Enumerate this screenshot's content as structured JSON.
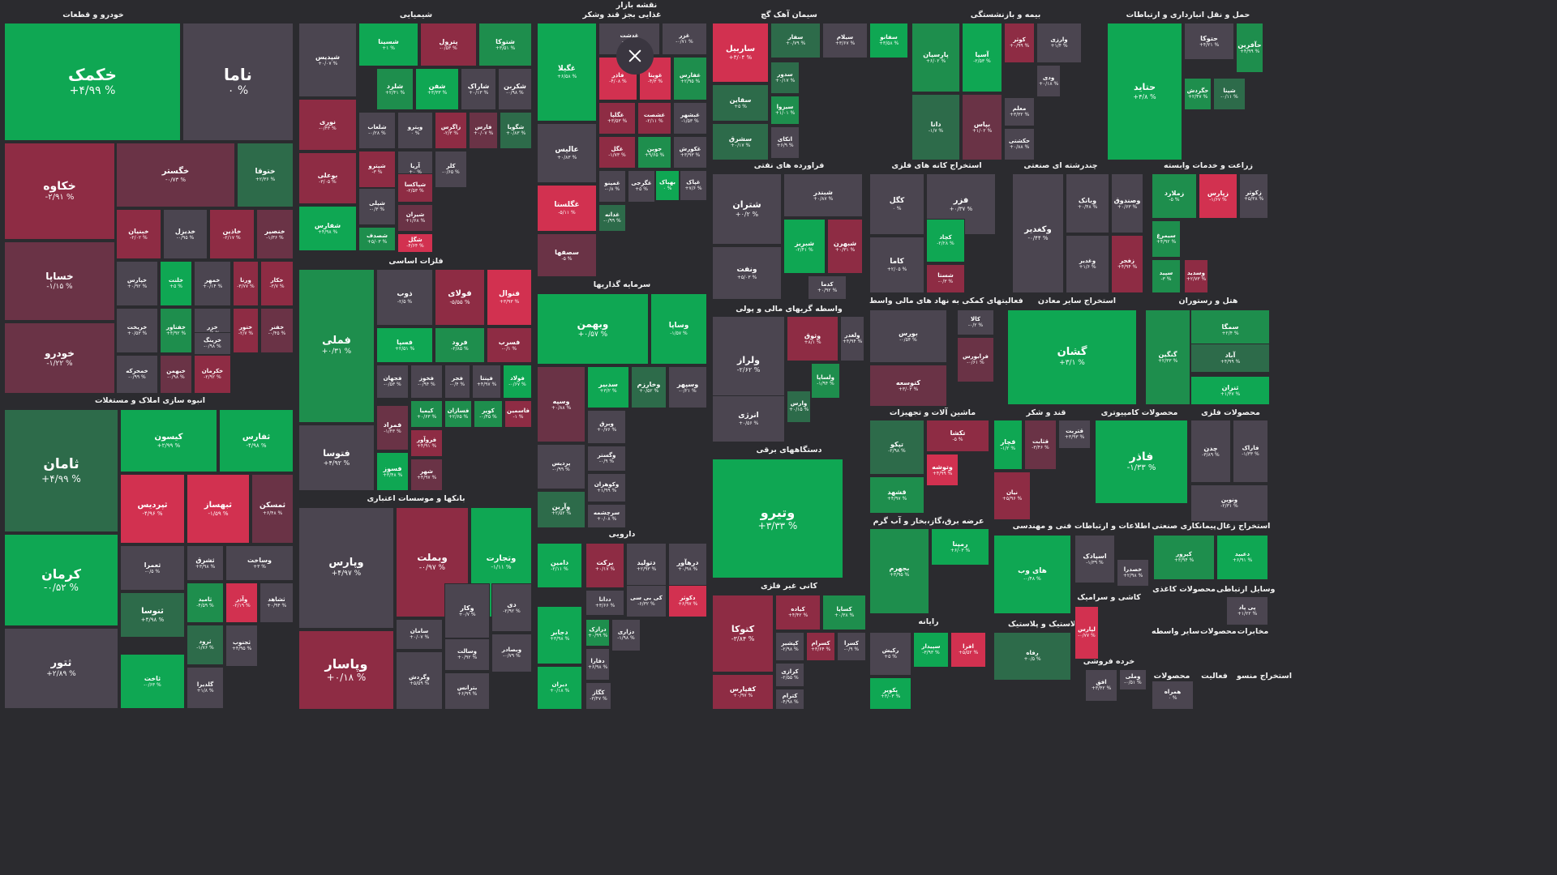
{
  "map_title": "نقشه بازار",
  "close_icon": "close-icon",
  "colors": {
    "strong_green": "#0fa753",
    "green": "#1e8e4d",
    "dark_green": "#2d6b4a",
    "neutral": "#4b4550",
    "dark_red": "#6a3346",
    "red": "#8e2c44",
    "strong_red": "#d23150"
  },
  "sections": [
    {
      "title": "خودرو و قطعات"
    },
    {
      "title": "شیمیایی"
    },
    {
      "title": "غذایی بجز قند وشکر"
    },
    {
      "title": "سیمان آهک گچ"
    },
    {
      "title": "بیمه و بازنشستگی"
    },
    {
      "title": "حمل و نقل انبارداری و ارتباطات"
    },
    {
      "title": "فراورده های نفتی"
    },
    {
      "title": "استخراج کانه های فلزی"
    },
    {
      "title": "چندرشته ای صنعتی"
    },
    {
      "title": "زراعت و خدمات وابسته"
    },
    {
      "title": "فلزات اساسی"
    },
    {
      "title": "سرمایه گذاریها"
    },
    {
      "title": "واسطه گریهای مالی و پولی"
    },
    {
      "title": "فعالیتهای کمکی به نهاد های مالی واسط"
    },
    {
      "title": "استخراج سایر معادن"
    },
    {
      "title": "هتل و رستوران"
    },
    {
      "title": "انبوه سازی املاک و مستغلات"
    },
    {
      "title": "ماشین آلات و تجهیزات"
    },
    {
      "title": "قند و شکر"
    },
    {
      "title": "محصولات کامپیوتری"
    },
    {
      "title": "محصولات فلزی"
    },
    {
      "title": "بانکها و موسسات اعتباری"
    },
    {
      "title": "دستگاههای برقی"
    },
    {
      "title": "عرضه برق،گاز،بخار و آب گرم"
    },
    {
      "title": "فنی و مهندسی"
    },
    {
      "title": "اطلاعات و ارتباطات"
    },
    {
      "title": "پیمانکاری صنعتی"
    },
    {
      "title": "استخراج زغال"
    },
    {
      "title": "دارویی"
    },
    {
      "title": "کانی غیر فلزی"
    },
    {
      "title": "کاشی و سرامیک"
    },
    {
      "title": "محصولات کاغذی"
    },
    {
      "title": "وسایل ارتباطی"
    },
    {
      "title": "رایانه"
    },
    {
      "title": "لاستیک و پلاستیک"
    },
    {
      "title": "سایر واسطه"
    },
    {
      "title": "محصولات"
    },
    {
      "title": "مخابرات"
    },
    {
      "title": "خرده فروشی"
    },
    {
      "title": "محصولات"
    },
    {
      "title": "فعالیت"
    },
    {
      "title": "استخراج منسو"
    }
  ],
  "tiles": [
    {
      "sym": "خکمک",
      "chg": "+۴/۹۹ %"
    },
    {
      "sym": "ناما",
      "chg": "۰ %"
    },
    {
      "sym": "خکاوه",
      "chg": "-۲/۹۱ %"
    },
    {
      "sym": "خگستر",
      "chg": "-۰/۷۳ %"
    },
    {
      "sym": "ختوقا",
      "chg": "+۲/۳۶ %"
    },
    {
      "sym": "خساپا",
      "chg": "-۱/۱۵ %"
    },
    {
      "sym": "خودرو",
      "chg": "-۱/۲۲ %"
    },
    {
      "sym": "ختراکتور",
      "chg": "-۰/۴۶ %"
    },
    {
      "sym": "خبنیان",
      "chg": "-۲/۰۲ %"
    },
    {
      "sym": "خدیزل",
      "chg": "-۰/۹۵ %"
    },
    {
      "sym": "خاذین",
      "chg": "-۲/۱۷ %"
    },
    {
      "sym": "خنصیر",
      "chg": "-۱/۳۶ %"
    },
    {
      "sym": "خپارس",
      "chg": "+۰/۹۲ %"
    },
    {
      "sym": "خلنت",
      "chg": "+۵ %"
    },
    {
      "sym": "خمهر",
      "chg": "+۰/۱۴ %"
    },
    {
      "sym": "ورنا",
      "chg": "-۳/۷۷ %"
    },
    {
      "sym": "خکار",
      "chg": "-۳/۷ %"
    },
    {
      "sym": "خریخت",
      "chg": "+۰/۵۳ %"
    },
    {
      "sym": "خفناور",
      "chg": "+۴/۹۲ %"
    },
    {
      "sym": "خزر",
      "chg": "-۰/۹ %"
    },
    {
      "sym": "ختور",
      "chg": "-۲/۷ %"
    },
    {
      "sym": "خفنر",
      "chg": "-۰/۴۵ %"
    },
    {
      "sym": "خرینگ",
      "chg": "-۰/۹۸ %"
    },
    {
      "sym": "خمحرکه",
      "chg": "-۰/۹۹ %"
    },
    {
      "sym": "خبهمن",
      "chg": "-۰/۹۸ %"
    },
    {
      "sym": "خکرمان",
      "chg": "-۲/۹۲ %"
    },
    {
      "sym": "شسینا",
      "chg": "+۱ %"
    },
    {
      "sym": "پترول",
      "chg": "-۰/۵۳ %"
    },
    {
      "sym": "شتوکا",
      "chg": "+۳/۵۱ %"
    },
    {
      "sym": "شپدیس",
      "chg": "+۰/۰۷ %"
    },
    {
      "sym": "شلرد",
      "chg": "+۲/۴۱ %"
    },
    {
      "sym": "شفن",
      "chg": "+۳/۳۳ %"
    },
    {
      "sym": "شاراک",
      "chg": "+۰/۱۳ %"
    },
    {
      "sym": "شکربن",
      "chg": "-۰/۹۸ %"
    },
    {
      "sym": "نوری",
      "chg": "-۰/۴۳ %"
    },
    {
      "sym": "شلعاب",
      "chg": "-۰/۲۸ %"
    },
    {
      "sym": "ویترو",
      "chg": "۰ %"
    },
    {
      "sym": "زاگرس",
      "chg": "-۲/۳ %"
    },
    {
      "sym": "فارس",
      "chg": "+۰/۰۷ %"
    },
    {
      "sym": "شگویا",
      "chg": "+۰/۸۳ %"
    },
    {
      "sym": "بوعلی",
      "chg": "-۳/۰۵ %"
    },
    {
      "sym": "شپترو",
      "chg": "-۳ %"
    },
    {
      "sym": "آریا",
      "chg": "+۰ %"
    },
    {
      "sym": "کلر",
      "chg": "-۰/۶۵ %"
    },
    {
      "sym": "شفارس",
      "chg": "+۴/۹۸ %"
    },
    {
      "sym": "شپلی",
      "chg": "-۰/۳ %"
    },
    {
      "sym": "شپاکسا",
      "chg": "-۲/۵۳ %"
    },
    {
      "sym": "شیران",
      "chg": "+۱/۶۸ %"
    },
    {
      "sym": "شصدف",
      "chg": "+۵/۰۳ %"
    },
    {
      "sym": "شگل",
      "chg": "-۴/۶۴ %"
    },
    {
      "sym": "غگیلا",
      "chg": "+۶/۵۸ %"
    },
    {
      "sym": "غدشت",
      "chg": "-۰/۹ %"
    },
    {
      "sym": "غزر",
      "chg": "-۰/۷۱ %"
    },
    {
      "sym": "فاذر",
      "chg": "-۴/۰۸ %"
    },
    {
      "sym": "غویتا",
      "chg": "-۴/۳ %"
    },
    {
      "sym": "غفارس",
      "chg": "+۲/۹۵ %"
    },
    {
      "sym": "عالیس",
      "chg": "+۰/۸۳ %"
    },
    {
      "sym": "غگلپا",
      "chg": "+۳/۵۳ %"
    },
    {
      "sym": "غشصت",
      "chg": "-۲/۱۱ %"
    },
    {
      "sym": "غبشهر",
      "chg": "-۱/۵۳ %"
    },
    {
      "sym": "غگل",
      "chg": "-۱/۷۳ %"
    },
    {
      "sym": "جوین",
      "chg": "+۹/۶۵ %"
    },
    {
      "sym": "غکورش",
      "chg": "+۳/۹۳ %"
    },
    {
      "sym": "غگلستا",
      "chg": "-۵/۱۱ %"
    },
    {
      "sym": "غمینو",
      "chg": "-۰/۸ %"
    },
    {
      "sym": "غگرجی",
      "chg": "+۵ %"
    },
    {
      "sym": "بهپاک",
      "chg": "۰ %"
    },
    {
      "sym": "غپاک",
      "chg": "+۷/۶ %"
    },
    {
      "sym": "غدانه",
      "chg": "-۰/۹۹ %"
    },
    {
      "sym": "سصفها",
      "chg": "-۵ %"
    },
    {
      "sym": "ساربیل",
      "chg": "+۳/۰۴ %"
    },
    {
      "sym": "سفار",
      "chg": "+۰/۷۹ %"
    },
    {
      "sym": "سیلام",
      "chg": "+۳/۶۷ %"
    },
    {
      "sym": "سفانو",
      "chg": "+۳/۵۸ %"
    },
    {
      "sym": "سدور",
      "chg": "+۰/۱۷ %"
    },
    {
      "sym": "سقاین",
      "chg": "+۵ %"
    },
    {
      "sym": "سیزوا",
      "chg": "+۱/۰۱ %"
    },
    {
      "sym": "سشرق",
      "chg": "+۰/۱۷ %"
    },
    {
      "sym": "اتکای",
      "chg": "+۶/۹ %"
    },
    {
      "sym": "پارسیان",
      "chg": "+۶/۰۲ %"
    },
    {
      "sym": "آسیا",
      "chg": "-۲/۵۳ %"
    },
    {
      "sym": "کوثر",
      "chg": "+۰/۹۹ %"
    },
    {
      "sym": "وارزی",
      "chg": "+۱/۴ %"
    },
    {
      "sym": "ودی",
      "chg": "+۰/۱۸ %"
    },
    {
      "sym": "معلم",
      "chg": "+۳/۳۲ %"
    },
    {
      "sym": "دانا",
      "chg": "-۱/۷ %"
    },
    {
      "sym": "بپاس",
      "chg": "+۱/۰۲ %"
    },
    {
      "sym": "حکشتی",
      "chg": "+۰/۸۸ %"
    },
    {
      "sym": "حتوکا",
      "chg": "+۴/۲۱ %"
    },
    {
      "sym": "حآفرین",
      "chg": "+۴/۹۹ %"
    },
    {
      "sym": "حتاید",
      "chg": "+۴/۸ %"
    },
    {
      "sym": "حگردش",
      "chg": "+۲/۴۷ %"
    },
    {
      "sym": "شپنا",
      "chg": "-۰/۱۱ %"
    },
    {
      "sym": "شتران",
      "chg": "+۰/۲ %"
    },
    {
      "sym": "شبندر",
      "chg": "+۰/۸۷ %"
    },
    {
      "sym": "ونفت",
      "chg": "+۵/۰۳ %"
    },
    {
      "sym": "شبریز",
      "chg": "-۲/۴۱ %"
    },
    {
      "sym": "شبهرن",
      "chg": "+۰/۳۱ %"
    },
    {
      "sym": "کدما",
      "chg": "+۰/۹۲ %"
    },
    {
      "sym": "کگل",
      "chg": "۰ %"
    },
    {
      "sym": "فزر",
      "chg": "+۰/۳۷ %"
    },
    {
      "sym": "کاما",
      "chg": "+۲/۰۵ %"
    },
    {
      "sym": "کچاد",
      "chg": "-۲/۲۸ %"
    },
    {
      "sym": "شستا",
      "chg": "-۰/۳ %"
    },
    {
      "sym": "وکغدیر",
      "chg": "-۰/۴۴ %"
    },
    {
      "sym": "وبانک",
      "chg": "+۰/۴۸ %"
    },
    {
      "sym": "وصندوق",
      "chg": "+۰/۶۳ %"
    },
    {
      "sym": "وغدیر",
      "chg": "+۱/۶ %"
    },
    {
      "sym": "زفجر",
      "chg": "+۴/۹۴ %"
    },
    {
      "sym": "زملارد",
      "chg": "-۵ %"
    },
    {
      "sym": "زپارس",
      "chg": "-۱/۶۷ %"
    },
    {
      "sym": "زکوثر",
      "chg": "+۵/۳۸ %"
    },
    {
      "sym": "سیمرغ",
      "chg": "+۴/۹۲ %"
    },
    {
      "sym": "سپید",
      "chg": "-۳ %"
    },
    {
      "sym": "وسدید",
      "chg": "+۲/۷۳ %"
    },
    {
      "sym": "فملی",
      "chg": "+۰/۳۱ %"
    },
    {
      "sym": "ذوب",
      "chg": "-۲/۵ %"
    },
    {
      "sym": "فولای",
      "chg": "-۵/۵۵ %"
    },
    {
      "sym": "فنوال",
      "chg": "+۳/۹۳ %"
    },
    {
      "sym": "فسپا",
      "chg": "+۲/۵۱ %"
    },
    {
      "sym": "فرود",
      "chg": "-۲/۸۵ %"
    },
    {
      "sym": "فسرب",
      "chg": "-۰/۱ %"
    },
    {
      "sym": "فجهان",
      "chg": "-۰/۵۳ %"
    },
    {
      "sym": "فخوز",
      "chg": "-۰/۹۴ %"
    },
    {
      "sym": "فجر",
      "chg": "-۰/۴ %"
    },
    {
      "sym": "فپنتا",
      "chg": "+۴/۹۷ %"
    },
    {
      "sym": "فولاد",
      "chg": "-۰/۶۷ %"
    },
    {
      "sym": "فتوسا",
      "chg": "+۴/۹۲ %"
    },
    {
      "sym": "کیمیا",
      "chg": "+۰/۶۳ %"
    },
    {
      "sym": "فسازان",
      "chg": "+۲/۶۵ %"
    },
    {
      "sym": "کویر",
      "chg": "-۰/۴۵ %"
    },
    {
      "sym": "فاسمین",
      "chg": "-۱ %"
    },
    {
      "sym": "فمراد",
      "chg": "-۱/۴۳ %"
    },
    {
      "sym": "فروآور",
      "chg": "+۴/۹۱ %"
    },
    {
      "sym": "فسوز",
      "chg": "+۳/۴۸ %"
    },
    {
      "sym": "شهر",
      "chg": "+۴/۹۷ %"
    },
    {
      "sym": "وبهمن",
      "chg": "+۰/۵۷ %"
    },
    {
      "sym": "وساپا",
      "chg": "-۱/۵۷ %"
    },
    {
      "sym": "وسپه",
      "chg": "+۰/۸۸ %"
    },
    {
      "sym": "سدبیر",
      "chg": "+۳/۲ %"
    },
    {
      "sym": "وخارزم",
      "chg": "+۰/۵۲ %"
    },
    {
      "sym": "وسپهر",
      "chg": "-۰/۲۱ %"
    },
    {
      "sym": "وبرق",
      "chg": "+۰/۷۶ %"
    },
    {
      "sym": "پردیس",
      "chg": "-۰/۹۹ %"
    },
    {
      "sym": "وگستر",
      "chg": "-۰/۹ %"
    },
    {
      "sym": "وکوهران",
      "chg": "+۱/۹۹ %"
    },
    {
      "sym": "وآرین",
      "chg": "+۲/۵۲ %"
    },
    {
      "sym": "سرچشمه",
      "chg": "+۰/۰۸ %"
    },
    {
      "sym": "ولراز",
      "chg": "-۲/۶۲ %"
    },
    {
      "sym": "وثوق",
      "chg": "+۸/۱ %"
    },
    {
      "sym": "ولغدر",
      "chg": "+۴/۹۴ %"
    },
    {
      "sym": "ولساپا",
      "chg": "-۱/۹۴ %"
    },
    {
      "sym": "وارس",
      "chg": "+۰/۱۵ %"
    },
    {
      "sym": "انرژی",
      "chg": "+۰/۵۶ %"
    },
    {
      "sym": "کالا",
      "chg": "-۰/۲ %"
    },
    {
      "sym": "بورس",
      "chg": "-۰/۵۴ %"
    },
    {
      "sym": "فرابورس",
      "chg": "-۰/۶۱ %"
    },
    {
      "sym": "کتوسعه",
      "chg": "+۳/۰۳ %"
    },
    {
      "sym": "گشان",
      "chg": "+۳/۱ %"
    },
    {
      "sym": "سمگا",
      "chg": "+۲/۴ %"
    },
    {
      "sym": "گنگین",
      "chg": "+۲/۳۳ %"
    },
    {
      "sym": "آباد",
      "chg": "+۴/۹۹ %"
    },
    {
      "sym": "ثنران",
      "chg": "+۱/۴۷ %"
    },
    {
      "sym": "ثامان",
      "chg": "+۴/۹۹ %"
    },
    {
      "sym": "کیسون",
      "chg": "+۲/۹۹ %"
    },
    {
      "sym": "ثفارس",
      "chg": "-۴/۹۸ %"
    },
    {
      "sym": "ثپردیس",
      "chg": "-۴/۹۶ %"
    },
    {
      "sym": "ثبهساز",
      "chg": "-۱/۵۹ %"
    },
    {
      "sym": "ثمسکن",
      "chg": "+۶/۴۸ %"
    },
    {
      "sym": "کرمان",
      "chg": "-۰/۵۲ %"
    },
    {
      "sym": "ثعمرا",
      "chg": "-۰/۵ %"
    },
    {
      "sym": "ثشرق",
      "chg": "+۳/۹۸ %"
    },
    {
      "sym": "وساخت",
      "chg": "+۳ %"
    },
    {
      "sym": "ثنوسا",
      "chg": "+۴/۹۸ %"
    },
    {
      "sym": "ثامید",
      "chg": "-۴/۵۹ %"
    },
    {
      "sym": "وآذر",
      "chg": "-۲/۱۹ %"
    },
    {
      "sym": "ثشاهد",
      "chg": "+۰/۹۴ %"
    },
    {
      "sym": "ثتور",
      "chg": "+۲/۸۹ %"
    },
    {
      "sym": "ثرود",
      "chg": "-۱/۷۶ %"
    },
    {
      "sym": "ثجنوب",
      "chg": "+۴/۹۵ %"
    },
    {
      "sym": "ثاخت",
      "chg": "-۰/۶۳ %"
    },
    {
      "sym": "گلدیرا",
      "chg": "+۱/۸ %"
    },
    {
      "sym": "تپکو",
      "chg": "-۲/۹۸ %"
    },
    {
      "sym": "تکشا",
      "chg": "-۵ %"
    },
    {
      "sym": "وتوشه",
      "chg": "+۴/۹۹ %"
    },
    {
      "sym": "قشهد",
      "chg": "+۴/۹۷ %"
    },
    {
      "sym": "قچار",
      "chg": "-۱/۲ %"
    },
    {
      "sym": "قثابت",
      "chg": "-۳/۴۶ %"
    },
    {
      "sym": "قتربت",
      "chg": "+۳/۹۳ %"
    },
    {
      "sym": "نیان",
      "chg": "+۵/۹۶ %"
    },
    {
      "sym": "فاذر",
      "chg": "-۱/۳۳ %"
    },
    {
      "sym": "چدن",
      "chg": "-۳/۸۹ %"
    },
    {
      "sym": "فاراک",
      "chg": "-۱/۳۳ %"
    },
    {
      "sym": "ونوین",
      "chg": "-۲/۳۱ %"
    },
    {
      "sym": "وبملت",
      "chg": "-۰/۹۷ %"
    },
    {
      "sym": "وپارس",
      "chg": "+۴/۹۷ %"
    },
    {
      "sym": "وتجارت",
      "chg": "-۱/۱۱ %"
    },
    {
      "sym": "سامان",
      "chg": "+۰/۰۷ %"
    },
    {
      "sym": "وکار",
      "chg": "+۰/۷ %"
    },
    {
      "sym": "دی",
      "chg": "-۲/۹۲ %"
    },
    {
      "sym": "وپاسار",
      "chg": "+۰/۱۸ %"
    },
    {
      "sym": "وسالت",
      "chg": "+۰/۹۲ %"
    },
    {
      "sym": "وبصادر",
      "chg": "-۰/۷۹ %"
    },
    {
      "sym": "وگردش",
      "chg": "+۵/۵۹ %"
    },
    {
      "sym": "بترانس",
      "chg": "+۶/۹۹ %"
    },
    {
      "sym": "وتیرو",
      "chg": "+۳/۳۳ %"
    },
    {
      "sym": "بجهرم",
      "chg": "+۳/۹۵ %"
    },
    {
      "sym": "رمپنا",
      "chg": "+۶/۰۳ %"
    },
    {
      "sym": "های وب",
      "chg": "-۰/۴۸ %"
    },
    {
      "sym": "اسپادک",
      "chg": "-۱/۳۹ %"
    },
    {
      "sym": "خصدرا",
      "chg": "+۲/۹۸ %"
    },
    {
      "sym": "کپرور",
      "chg": "+۳/۹۴ %"
    },
    {
      "sym": "دعبید",
      "chg": "+۶/۹۱ %"
    },
    {
      "sym": "دامین",
      "chg": "-۲/۱۱ %"
    },
    {
      "sym": "برکت",
      "chg": "+۰/۱۷ %"
    },
    {
      "sym": "دتولید",
      "chg": "+۲/۹۳ %"
    },
    {
      "sym": "درهآور",
      "chg": "+۰/۹۸ %"
    },
    {
      "sym": "ددانا",
      "chg": "+۳/۶۶ %"
    },
    {
      "sym": "کی بی سی",
      "chg": "-۶/۳۲ %"
    },
    {
      "sym": "دکوثر",
      "chg": "+۶/۹۷ %"
    },
    {
      "sym": "دجابر",
      "chg": "+۳/۹۸ %"
    },
    {
      "sym": "درازک",
      "chg": "+۰/۹۹ %"
    },
    {
      "sym": "دزاری",
      "chg": "-۱/۹۸ %"
    },
    {
      "sym": "دفارا",
      "chg": "+۶/۹۸ %"
    },
    {
      "sym": "دیران",
      "chg": "+۰/۱۸ %"
    },
    {
      "sym": "کگاز",
      "chg": "-۳/۴۷ %"
    },
    {
      "sym": "کتوکا",
      "chg": "-۳/۸۴ %"
    },
    {
      "sym": "کیاده",
      "chg": "+۴/۴۲ %"
    },
    {
      "sym": "کساپا",
      "chg": "+۰/۳۸ %"
    },
    {
      "sym": "کپشیر",
      "chg": "-۲/۹۸ %"
    },
    {
      "sym": "کسرام",
      "chg": "+۳/۶۴ %"
    },
    {
      "sym": "کسرا",
      "chg": "-۰/۹ %"
    },
    {
      "sym": "کرازی",
      "chg": "-۲/۵۵ %"
    },
    {
      "sym": "کفپارس",
      "chg": "+۰/۹۷ %"
    },
    {
      "sym": "کترام",
      "chg": "-۴/۹۸ %"
    },
    {
      "sym": "لپارس",
      "chg": "-۰/۷۷ %"
    },
    {
      "sym": "پی پاد",
      "chg": "+۱/۲۲ %"
    },
    {
      "sym": "رکیش",
      "chg": "+۵ %"
    },
    {
      "sym": "سپیدار",
      "chg": "-۳/۹۳ %"
    },
    {
      "sym": "افرا",
      "chg": "+۵/۵۲ %"
    },
    {
      "sym": "پکویر",
      "chg": "+۳/۰۳ %"
    },
    {
      "sym": "رفاه",
      "chg": "+۰/۵ %"
    },
    {
      "sym": "افق",
      "chg": "+۳/۴۲ %"
    },
    {
      "sym": "وملی",
      "chg": "-۰/۵۱ %"
    },
    {
      "sym": "همراه",
      "chg": "۰ %"
    }
  ]
}
